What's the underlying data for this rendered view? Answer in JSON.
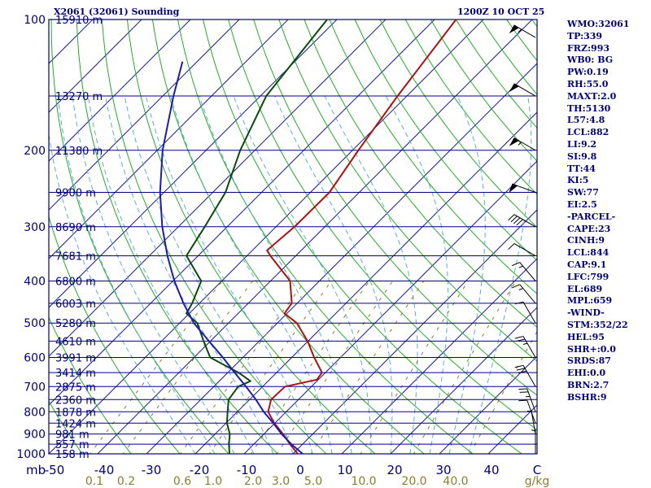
{
  "header": {
    "title_left": "X2061 (32061) Sounding",
    "title_right": "1200Z 10 OCT 25"
  },
  "indices": [
    "WMO:32061",
    "TP:339",
    "FRZ:993",
    "WB0: BG",
    "PW:0.19",
    "RH:55.0",
    "MAXT:2.0",
    "TH:5130",
    "L57:4.8",
    "LCL:882",
    "LI:9.2",
    "SI:9.8",
    "TT:44",
    "KI:5",
    "SW:77",
    "EI:2.5",
    "-PARCEL-",
    "CAPE:23",
    "CINH:9",
    "LCL:844",
    "CAP:9.1",
    "LFC:799",
    "EL:689",
    "MPL:659",
    "-WIND-",
    "STM:352/22",
    "HEL:95",
    "SHR+:0.0",
    "SRDS:87",
    "EHI:0.0",
    "BRN:2.7",
    "BSHR:9"
  ],
  "colors": {
    "isobar": "#000080",
    "isotherm": "#1a1aa0",
    "dry_adiabat": "#22b022",
    "moist_adiabat": "#5aaedc",
    "mixing_ratio": "#8b7d2b",
    "temperature": "#b01010",
    "dewpoint": "#0a4a0a",
    "parcel": "#1a1abb",
    "background": "#ffffff"
  },
  "chart_data": {
    "type": "line",
    "chart_kind": "skew-t log-p sounding",
    "x_axis_unit": "°C",
    "mixing_ratio_unit": "g/kg",
    "pressure_corner_label": "mb",
    "xlim": [
      -50,
      50
    ],
    "ylim_pressure": [
      1000,
      100
    ],
    "x_ticks": [
      "-50",
      "-40",
      "-30",
      "-20",
      "-10",
      "0",
      "10",
      "20",
      "30",
      "40",
      "C"
    ],
    "mixing_ratio_ticks": [
      "0.1",
      "0.2",
      "0.6",
      "1.0",
      "2.0",
      "3.0",
      "5.0",
      "10.0",
      "20.0",
      "40.0",
      "g/kg"
    ],
    "pressure_ticks": [
      1000,
      900,
      800,
      700,
      600,
      500,
      400,
      300,
      200,
      100
    ],
    "height_labels": [
      {
        "p": 100,
        "h": "15910 m"
      },
      {
        "p": 150,
        "h": "13270 m"
      },
      {
        "p": 200,
        "h": "11380 m"
      },
      {
        "p": 250,
        "h": "9900 m"
      },
      {
        "p": 300,
        "h": "8690 m"
      },
      {
        "p": 350,
        "h": "7681 m"
      },
      {
        "p": 400,
        "h": "6800 m"
      },
      {
        "p": 450,
        "h": "6003 m"
      },
      {
        "p": 500,
        "h": "5280 m"
      },
      {
        "p": 550,
        "h": "4610 m"
      },
      {
        "p": 600,
        "h": "3991 m"
      },
      {
        "p": 650,
        "h": "3414 m"
      },
      {
        "p": 700,
        "h": "2875 m"
      },
      {
        "p": 750,
        "h": "2360 m"
      },
      {
        "p": 800,
        "h": "1878 m"
      },
      {
        "p": 850,
        "h": "1424 m"
      },
      {
        "p": 900,
        "h": "981 m"
      },
      {
        "p": 950,
        "h": "557 m"
      },
      {
        "p": 1000,
        "h": "158 m"
      }
    ],
    "series": [
      {
        "key": "temperature",
        "points": [
          {
            "p": 1000,
            "t": 1.0
          },
          {
            "p": 950,
            "t": -2.6
          },
          {
            "p": 900,
            "t": -6.1
          },
          {
            "p": 850,
            "t": -10.1
          },
          {
            "p": 800,
            "t": -13.7
          },
          {
            "p": 750,
            "t": -15.6
          },
          {
            "p": 700,
            "t": -15.4
          },
          {
            "p": 675,
            "t": -10.3
          },
          {
            "p": 650,
            "t": -10.7
          },
          {
            "p": 600,
            "t": -15.4
          },
          {
            "p": 550,
            "t": -20.1
          },
          {
            "p": 500,
            "t": -26.0
          },
          {
            "p": 475,
            "t": -30.5
          },
          {
            "p": 450,
            "t": -31.1
          },
          {
            "p": 400,
            "t": -36.0
          },
          {
            "p": 350,
            "t": -45.2
          },
          {
            "p": 340,
            "t": -47.0
          },
          {
            "p": 300,
            "t": -46.2
          },
          {
            "p": 250,
            "t": -46.1
          },
          {
            "p": 200,
            "t": -48.8
          },
          {
            "p": 150,
            "t": -51.9
          },
          {
            "p": 100,
            "t": -55.6
          }
        ]
      },
      {
        "key": "dewpoint",
        "points": [
          {
            "p": 1000,
            "t": -13.0
          },
          {
            "p": 950,
            "t": -15.1
          },
          {
            "p": 900,
            "t": -17.0
          },
          {
            "p": 850,
            "t": -19.8
          },
          {
            "p": 800,
            "t": -22.0
          },
          {
            "p": 750,
            "t": -24.3
          },
          {
            "p": 700,
            "t": -25.0
          },
          {
            "p": 680,
            "t": -23.6
          },
          {
            "p": 650,
            "t": -27.8
          },
          {
            "p": 600,
            "t": -36.7
          },
          {
            "p": 550,
            "t": -41.4
          },
          {
            "p": 500,
            "t": -46.4
          },
          {
            "p": 475,
            "t": -50.6
          },
          {
            "p": 450,
            "t": -51.5
          },
          {
            "p": 400,
            "t": -54.2
          },
          {
            "p": 350,
            "t": -62.4
          },
          {
            "p": 300,
            "t": -64.6
          },
          {
            "p": 250,
            "t": -67.4
          },
          {
            "p": 200,
            "t": -73.0
          },
          {
            "p": 150,
            "t": -78.8
          },
          {
            "p": 100,
            "t": -82.0
          }
        ]
      },
      {
        "key": "parcel",
        "points": [
          {
            "p": 1000,
            "t": 2.0
          },
          {
            "p": 950,
            "t": -2.3
          },
          {
            "p": 900,
            "t": -6.4
          },
          {
            "p": 850,
            "t": -10.3
          },
          {
            "p": 800,
            "t": -14.6
          },
          {
            "p": 750,
            "t": -18.7
          },
          {
            "p": 700,
            "t": -23.4
          },
          {
            "p": 650,
            "t": -28.6
          },
          {
            "p": 600,
            "t": -34.1
          },
          {
            "p": 550,
            "t": -40.3
          },
          {
            "p": 500,
            "t": -47.1
          },
          {
            "p": 450,
            "t": -53.3
          },
          {
            "p": 400,
            "t": -59.7
          },
          {
            "p": 350,
            "t": -66.3
          },
          {
            "p": 300,
            "t": -73.3
          },
          {
            "p": 250,
            "t": -80.8
          },
          {
            "p": 200,
            "t": -88.9
          },
          {
            "p": 150,
            "t": -97.8
          },
          {
            "p": 125,
            "t": -103.0
          }
        ]
      }
    ],
    "wind_barbs": [
      {
        "p": 110,
        "dir": 300,
        "kt": 55
      },
      {
        "p": 150,
        "dir": 300,
        "kt": 50
      },
      {
        "p": 200,
        "dir": 300,
        "kt": 55
      },
      {
        "p": 250,
        "dir": 290,
        "kt": 50
      },
      {
        "p": 300,
        "dir": 300,
        "kt": 40
      },
      {
        "p": 350,
        "dir": 300,
        "kt": 10
      },
      {
        "p": 400,
        "dir": 320,
        "kt": 15
      },
      {
        "p": 450,
        "dir": 320,
        "kt": 15
      },
      {
        "p": 500,
        "dir": 330,
        "kt": 10
      },
      {
        "p": 600,
        "dir": 330,
        "kt": 25
      },
      {
        "p": 700,
        "dir": 330,
        "kt": 30
      },
      {
        "p": 800,
        "dir": 340,
        "kt": 25
      },
      {
        "p": 850,
        "dir": 340,
        "kt": 10
      },
      {
        "p": 900,
        "dir": 350,
        "kt": 5
      },
      {
        "p": 1000,
        "dir": 360,
        "kt": 5
      }
    ]
  }
}
